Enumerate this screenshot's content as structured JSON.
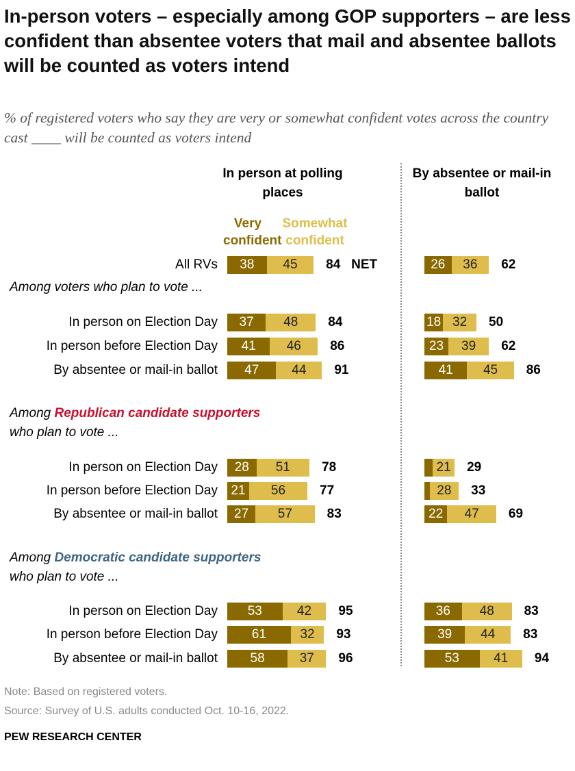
{
  "title": "In-person voters – especially among GOP supporters – are less confident than absentee voters that mail and absentee ballots will be counted as voters intend",
  "subtitle": "% of registered voters who say they are very or somewhat confident votes across the country cast ____ will be counted as voters intend",
  "colors": {
    "very": "#8a6a00",
    "somewhat": "#dfbd4c",
    "republican": "#c8102e",
    "democratic": "#3d6584"
  },
  "chart_data": {
    "type": "bar",
    "stacked": true,
    "columns": [
      "In person at polling places",
      "By absentee or mail-in ballot"
    ],
    "legend": [
      "Very confident",
      "Somewhat confident"
    ],
    "net_label": "NET",
    "groups": [
      {
        "label_pre": "",
        "label_em": "",
        "label_post": "",
        "rows": [
          {
            "label": "All RVs",
            "values": [
              [
                38,
                45,
                84
              ],
              [
                26,
                36,
                62
              ]
            ]
          }
        ]
      },
      {
        "label_pre": "Among voters who plan to vote ...",
        "label_em": "",
        "label_post": "",
        "rows": [
          {
            "label": "In person on Election Day",
            "values": [
              [
                37,
                48,
                84
              ],
              [
                18,
                32,
                50
              ]
            ]
          },
          {
            "label": "In person before Election Day",
            "values": [
              [
                41,
                46,
                86
              ],
              [
                23,
                39,
                62
              ]
            ]
          },
          {
            "label": "By absentee or mail-in ballot",
            "values": [
              [
                47,
                44,
                91
              ],
              [
                41,
                45,
                86
              ]
            ]
          }
        ]
      },
      {
        "label_pre": "Among ",
        "label_em": "Republican candidate supporters",
        "label_post": "who plan to vote ...",
        "em_color": "republican",
        "rows": [
          {
            "label": "In person on Election Day",
            "values": [
              [
                28,
                51,
                78
              ],
              [
                8,
                21,
                29
              ]
            ]
          },
          {
            "label": "In person before Election Day",
            "values": [
              [
                21,
                56,
                77
              ],
              [
                5,
                28,
                33
              ]
            ]
          },
          {
            "label": "By absentee or mail-in ballot",
            "values": [
              [
                27,
                57,
                83
              ],
              [
                22,
                47,
                69
              ]
            ]
          }
        ]
      },
      {
        "label_pre": "Among ",
        "label_em": "Democratic candidate supporters",
        "label_post": "who plan to vote ...",
        "em_color": "democratic",
        "rows": [
          {
            "label": "In person on Election Day",
            "values": [
              [
                53,
                42,
                95
              ],
              [
                36,
                48,
                83
              ]
            ]
          },
          {
            "label": "In person before Election Day",
            "values": [
              [
                61,
                32,
                93
              ],
              [
                39,
                44,
                83
              ]
            ]
          },
          {
            "label": "By absentee or mail-in ballot",
            "values": [
              [
                58,
                37,
                96
              ],
              [
                53,
                41,
                94
              ]
            ]
          }
        ]
      }
    ],
    "hidden_value_labels": [
      8,
      5
    ]
  },
  "note": "Note: Based on registered voters.",
  "source": "Source: Survey of U.S. adults conducted Oct. 10-16, 2022.",
  "brand": "PEW RESEARCH CENTER"
}
